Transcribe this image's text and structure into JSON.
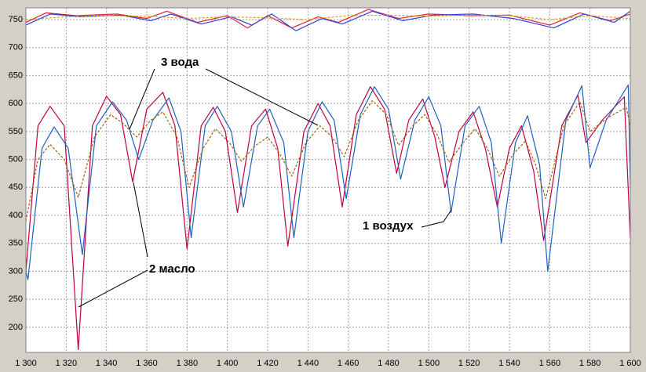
{
  "chart_data": {
    "type": "line",
    "xlim": [
      1300,
      1600
    ],
    "ylim": [
      155,
      771
    ],
    "xticks": [
      {
        "value": 1300,
        "label": "1 300"
      },
      {
        "value": 1320,
        "label": "1 320"
      },
      {
        "value": 1340,
        "label": "1 340"
      },
      {
        "value": 1360,
        "label": "1 360"
      },
      {
        "value": 1380,
        "label": "1 380"
      },
      {
        "value": 1400,
        "label": "1 400"
      },
      {
        "value": 1420,
        "label": "1 420"
      },
      {
        "value": 1440,
        "label": "1 440"
      },
      {
        "value": 1460,
        "label": "1 460"
      },
      {
        "value": 1480,
        "label": "1 480"
      },
      {
        "value": 1500,
        "label": "1 500"
      },
      {
        "value": 1520,
        "label": "1 520"
      },
      {
        "value": 1540,
        "label": "1 540"
      },
      {
        "value": 1560,
        "label": "1 560"
      },
      {
        "value": 1580,
        "label": "1 580"
      },
      {
        "value": 1600,
        "label": "1 600"
      }
    ],
    "yticks": [
      200,
      250,
      300,
      350,
      400,
      450,
      500,
      550,
      600,
      650,
      700,
      750
    ],
    "grid": true,
    "annotations": [
      {
        "text": "3 вода"
      },
      {
        "text": "2 масло"
      },
      {
        "text": "1 воздух"
      }
    ],
    "series": [
      {
        "color": "#e02030",
        "dashed": false,
        "x": [
          1300,
          1310,
          1325,
          1345,
          1360,
          1370,
          1385,
          1400,
          1410,
          1420,
          1432,
          1445,
          1455,
          1470,
          1485,
          1500,
          1520,
          1540,
          1560,
          1575,
          1590,
          1600
        ],
        "values": [
          745,
          762,
          757,
          760,
          752,
          765,
          745,
          757,
          735,
          757,
          735,
          755,
          745,
          768,
          752,
          760,
          757,
          758,
          740,
          762,
          748,
          760
        ]
      },
      {
        "color": "#3040e0",
        "dashed": false,
        "x": [
          1300,
          1312,
          1327,
          1347,
          1362,
          1372,
          1387,
          1402,
          1412,
          1422,
          1434,
          1447,
          1457,
          1472,
          1487,
          1502,
          1522,
          1542,
          1562,
          1577,
          1592,
          1600
        ],
        "values": [
          740,
          760,
          755,
          758,
          748,
          760,
          742,
          755,
          740,
          760,
          730,
          752,
          742,
          765,
          748,
          758,
          760,
          752,
          735,
          760,
          745,
          765
        ]
      },
      {
        "color": "#e0a020",
        "dashed": true,
        "x": [
          1300,
          1320,
          1340,
          1360,
          1380,
          1400,
          1420,
          1440,
          1460,
          1480,
          1500,
          1520,
          1540,
          1560,
          1580,
          1600
        ],
        "values": [
          750,
          755,
          757,
          756,
          752,
          755,
          753,
          750,
          757,
          758,
          756,
          758,
          757,
          750,
          757,
          752
        ]
      },
      {
        "color": "#c00040",
        "dashed": false,
        "x": [
          1300,
          1306,
          1312,
          1319,
          1326,
          1333,
          1340,
          1347,
          1353,
          1360,
          1368,
          1374,
          1380,
          1387,
          1393,
          1399,
          1405,
          1412,
          1419,
          1425,
          1430,
          1438,
          1445,
          1451,
          1457,
          1464,
          1471,
          1478,
          1484,
          1490,
          1497,
          1503,
          1508,
          1515,
          1522,
          1528,
          1534,
          1540,
          1546,
          1552,
          1557,
          1566,
          1574,
          1578,
          1586,
          1597,
          1600
        ],
        "values": [
          300,
          560,
          595,
          560,
          160,
          560,
          613,
          580,
          460,
          590,
          620,
          560,
          340,
          560,
          593,
          550,
          405,
          560,
          590,
          520,
          345,
          550,
          600,
          560,
          415,
          580,
          630,
          590,
          475,
          570,
          608,
          540,
          450,
          550,
          585,
          520,
          415,
          520,
          560,
          480,
          355,
          560,
          615,
          530,
          570,
          612,
          360
        ]
      },
      {
        "color": "#2060c0",
        "dashed": false,
        "x": [
          1300,
          1301,
          1308,
          1314,
          1321,
          1328,
          1335,
          1343,
          1350,
          1356,
          1363,
          1371,
          1377,
          1382,
          1389,
          1395,
          1402,
          1408,
          1415,
          1421,
          1428,
          1433,
          1440,
          1447,
          1453,
          1459,
          1466,
          1473,
          1480,
          1486,
          1493,
          1500,
          1506,
          1511,
          1518,
          1525,
          1531,
          1536,
          1543,
          1549,
          1555,
          1559,
          1568,
          1576,
          1580,
          1588,
          1599,
          1600
        ],
        "values": [
          300,
          285,
          520,
          558,
          520,
          330,
          560,
          603,
          570,
          500,
          570,
          610,
          550,
          360,
          560,
          595,
          550,
          415,
          560,
          590,
          530,
          360,
          550,
          603,
          570,
          430,
          580,
          630,
          590,
          465,
          570,
          612,
          560,
          405,
          560,
          595,
          530,
          350,
          530,
          578,
          490,
          300,
          570,
          632,
          485,
          570,
          633,
          450
        ]
      },
      {
        "color": "#a06010",
        "dashed": true,
        "x": [
          1300,
          1306,
          1312,
          1319,
          1326,
          1334,
          1342,
          1348,
          1355,
          1362,
          1368,
          1375,
          1381,
          1388,
          1394,
          1401,
          1407,
          1414,
          1420,
          1426,
          1432,
          1439,
          1446,
          1452,
          1458,
          1465,
          1472,
          1479,
          1485,
          1492,
          1498,
          1504,
          1510,
          1517,
          1523,
          1529,
          1535,
          1542,
          1548,
          1553,
          1558,
          1567,
          1575,
          1580,
          1589,
          1598,
          1600
        ],
        "values": [
          390,
          500,
          527,
          500,
          432,
          540,
          580,
          565,
          540,
          570,
          585,
          540,
          450,
          520,
          555,
          530,
          497,
          525,
          540,
          510,
          470,
          530,
          560,
          540,
          505,
          570,
          605,
          580,
          525,
          560,
          580,
          545,
          495,
          530,
          555,
          520,
          470,
          510,
          533,
          490,
          430,
          560,
          603,
          550,
          575,
          593,
          560
        ]
      }
    ]
  }
}
